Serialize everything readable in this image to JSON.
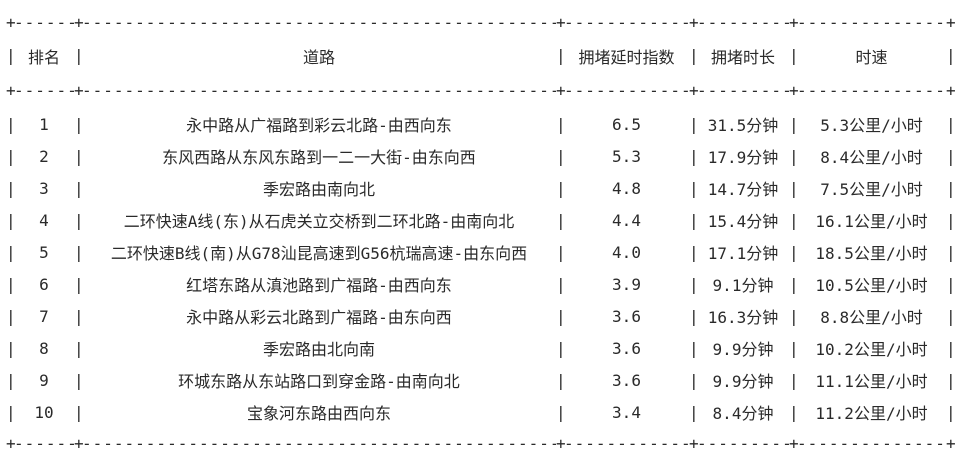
{
  "chart_data": {
    "type": "table",
    "columns": [
      "排名",
      "道路",
      "拥堵延时指数",
      "拥堵时长",
      "时速"
    ],
    "rows": [
      {
        "rank": "1",
        "road": "永中路从广福路到彩云北路-由西向东",
        "index": "6.5",
        "duration": "31.5分钟",
        "speed": "5.3公里/小时"
      },
      {
        "rank": "2",
        "road": "东风西路从东风东路到一二一大街-由东向西",
        "index": "5.3",
        "duration": "17.9分钟",
        "speed": "8.4公里/小时"
      },
      {
        "rank": "3",
        "road": "季宏路由南向北",
        "index": "4.8",
        "duration": "14.7分钟",
        "speed": "7.5公里/小时"
      },
      {
        "rank": "4",
        "road": "二环快速A线(东)从石虎关立交桥到二环北路-由南向北",
        "index": "4.4",
        "duration": "15.4分钟",
        "speed": "16.1公里/小时"
      },
      {
        "rank": "5",
        "road": "二环快速B线(南)从G78汕昆高速到G56杭瑞高速-由东向西",
        "index": "4.0",
        "duration": "17.1分钟",
        "speed": "18.5公里/小时"
      },
      {
        "rank": "6",
        "road": "红塔东路从滇池路到广福路-由西向东",
        "index": "3.9",
        "duration": "9.1分钟",
        "speed": "10.5公里/小时"
      },
      {
        "rank": "7",
        "road": "永中路从彩云北路到广福路-由东向西",
        "index": "3.6",
        "duration": "16.3分钟",
        "speed": "8.8公里/小时"
      },
      {
        "rank": "8",
        "road": "季宏路由北向南",
        "index": "3.6",
        "duration": "9.9分钟",
        "speed": "10.2公里/小时"
      },
      {
        "rank": "9",
        "road": "环城东路从东站路口到穿金路-由南向北",
        "index": "3.6",
        "duration": "9.9分钟",
        "speed": "11.1公里/小时"
      },
      {
        "rank": "10",
        "road": "宝象河东路由西向东",
        "index": "3.4",
        "duration": "8.4分钟",
        "speed": "11.2公里/小时"
      }
    ],
    "layout": {
      "border_char": "-",
      "corner_char": "+",
      "separator_char": "|",
      "text_color": "#2a2a2a",
      "background_color": "#ffffff"
    }
  }
}
